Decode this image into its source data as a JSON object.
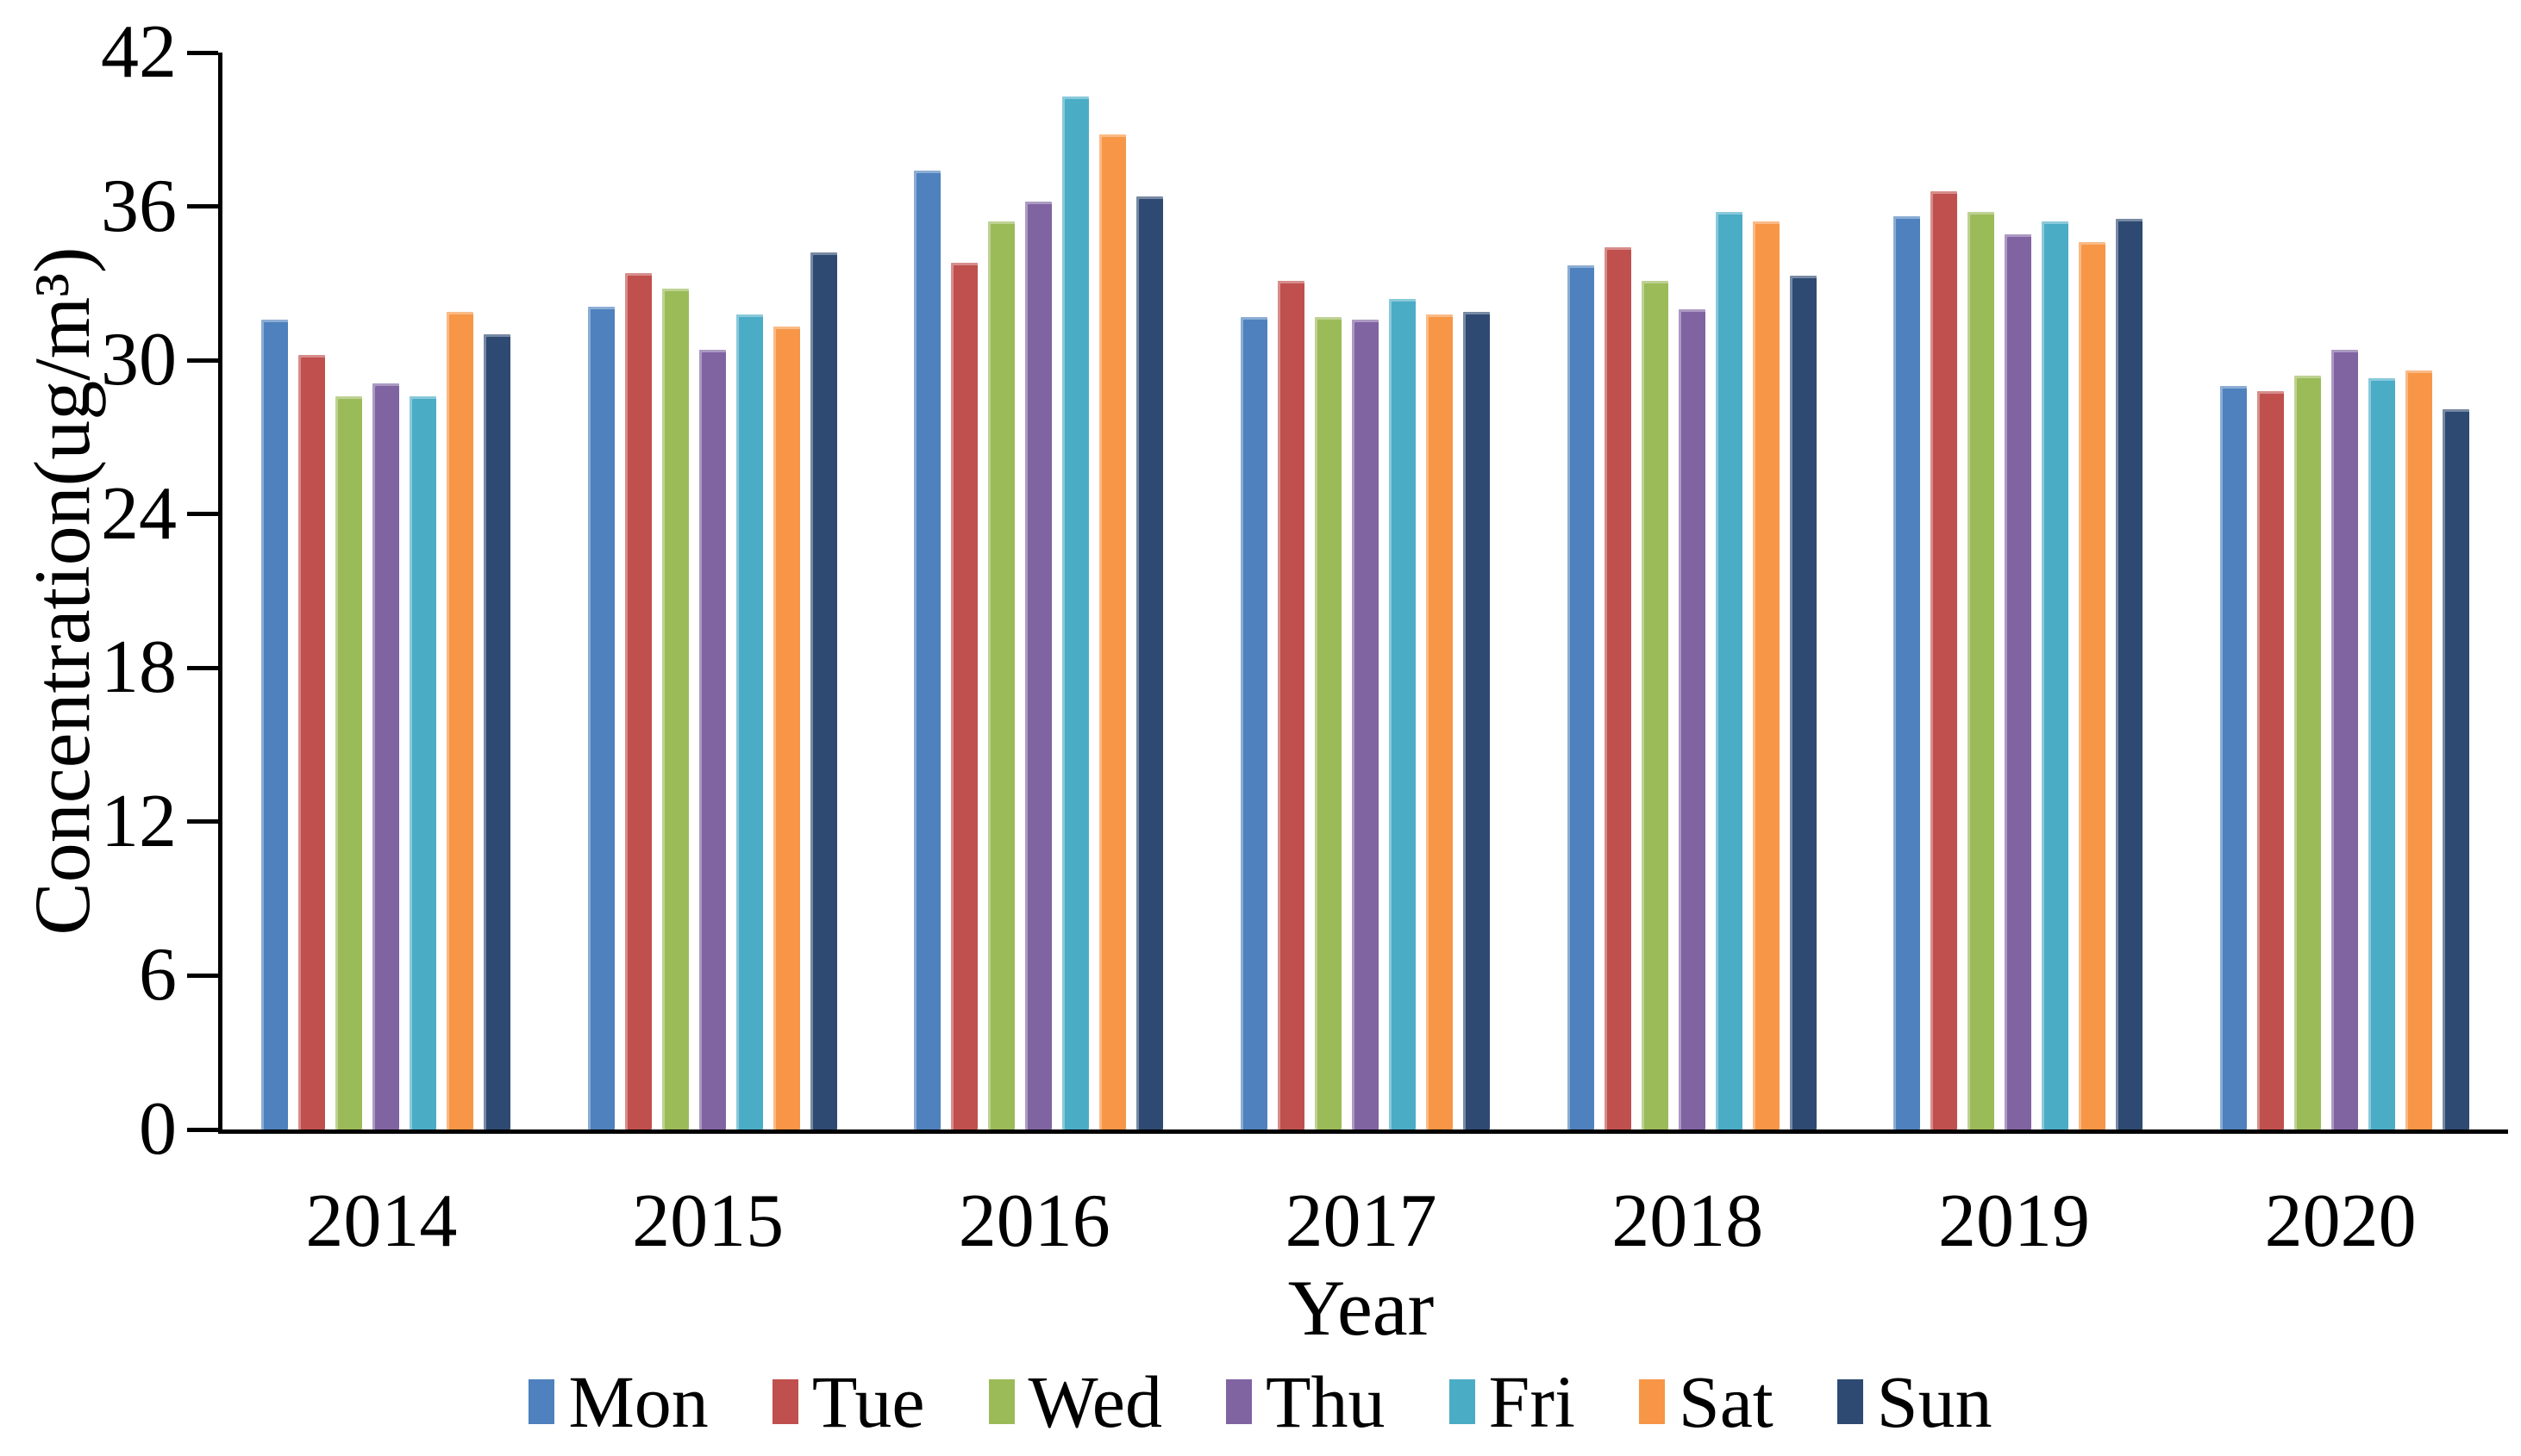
{
  "chart_data": {
    "type": "bar",
    "title": "",
    "xlabel": "Year",
    "ylabel": "Concentration(ug/m³)",
    "categories": [
      "2014",
      "2015",
      "2016",
      "2017",
      "2018",
      "2019",
      "2020"
    ],
    "series": [
      {
        "name": "Mon",
        "color": "#4E81BD",
        "values": [
          31.6,
          32.1,
          37.4,
          31.7,
          33.7,
          35.6,
          29.0
        ]
      },
      {
        "name": "Tue",
        "color": "#C0504D",
        "values": [
          30.2,
          33.4,
          33.8,
          33.1,
          34.4,
          36.6,
          28.8
        ]
      },
      {
        "name": "Wed",
        "color": "#9BBB59",
        "values": [
          28.6,
          32.8,
          35.4,
          31.7,
          33.1,
          35.8,
          29.4
        ]
      },
      {
        "name": "Thu",
        "color": "#8064A2",
        "values": [
          29.1,
          30.4,
          36.2,
          31.6,
          32.0,
          34.9,
          30.4
        ]
      },
      {
        "name": "Fri",
        "color": "#4BACC6",
        "values": [
          28.6,
          31.8,
          40.3,
          32.4,
          35.8,
          35.4,
          29.3
        ]
      },
      {
        "name": "Sat",
        "color": "#F79646",
        "values": [
          31.9,
          31.3,
          38.8,
          31.8,
          35.4,
          34.6,
          29.6
        ]
      },
      {
        "name": "Sun",
        "color": "#2E4A72",
        "values": [
          31.0,
          34.2,
          36.4,
          31.9,
          33.3,
          35.5,
          28.1
        ]
      }
    ],
    "ylim": [
      0,
      42
    ],
    "yticks": [
      0,
      6,
      12,
      18,
      24,
      30,
      36,
      42
    ],
    "grid": false,
    "legend_position": "bottom",
    "axis_color": "#000000"
  }
}
